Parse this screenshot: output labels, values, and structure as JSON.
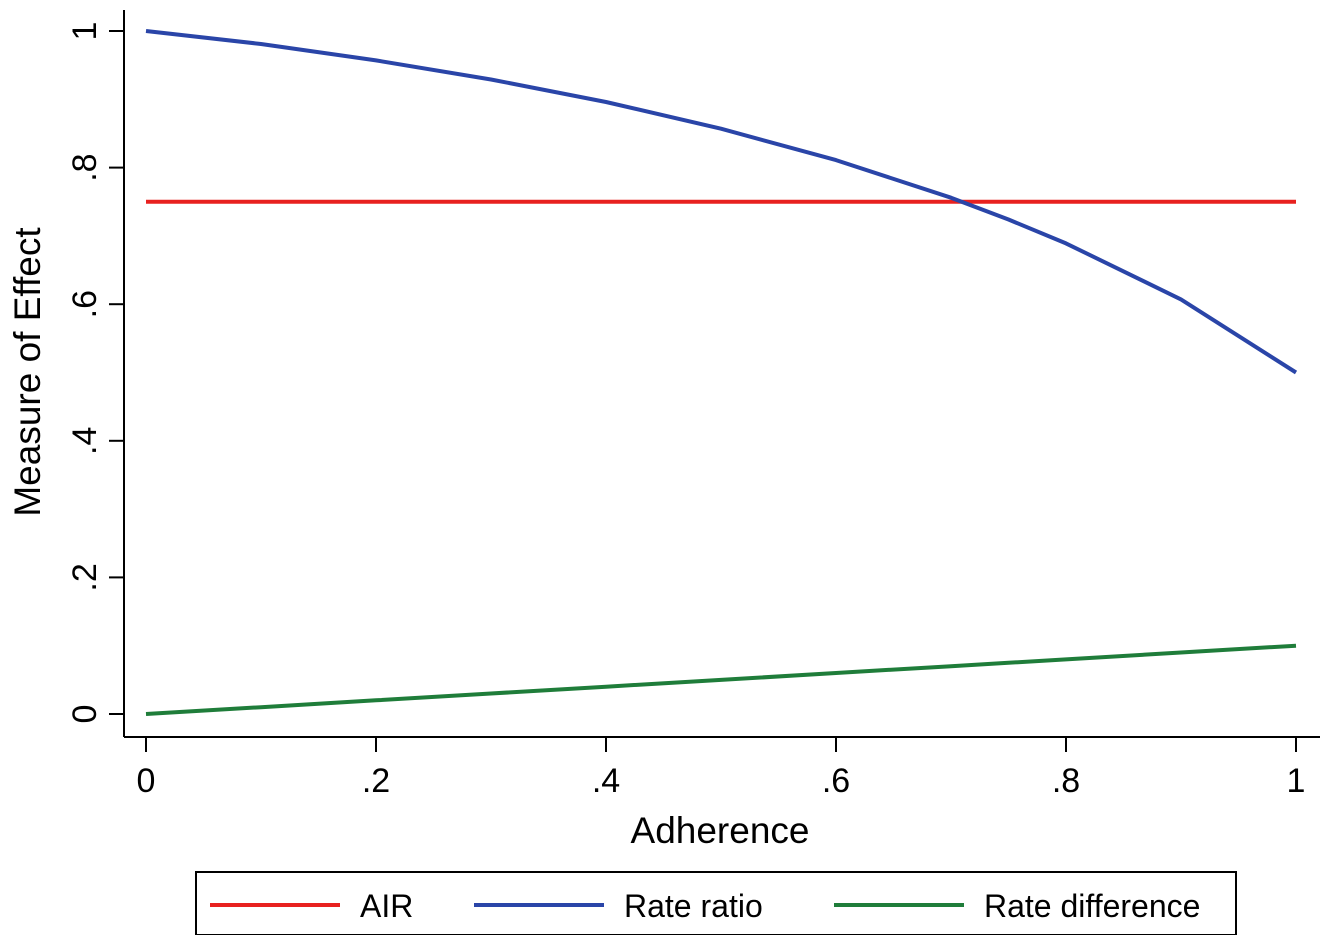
{
  "chart_data": {
    "type": "line",
    "title": "",
    "xlabel": "Adherence",
    "ylabel": "Measure of Effect",
    "xlim": [
      0,
      1
    ],
    "ylim": [
      0,
      1
    ],
    "x_ticks": [
      0,
      0.2,
      0.4,
      0.6,
      0.8,
      1
    ],
    "x_tick_labels": [
      "0",
      ".2",
      ".4",
      ".6",
      ".8",
      "1"
    ],
    "y_ticks": [
      0,
      0.2,
      0.4,
      0.6,
      0.8,
      1
    ],
    "y_tick_labels": [
      "0",
      ".2",
      ".4",
      ".6",
      ".8",
      "1"
    ],
    "grid": false,
    "legend_position": "bottom",
    "x": [
      0,
      0.1,
      0.2,
      0.3,
      0.4,
      0.5,
      0.6,
      0.7,
      0.75,
      0.8,
      0.9,
      1
    ],
    "series": [
      {
        "name": "AIR",
        "color": "#e8211f",
        "values": [
          0.75,
          0.75,
          0.75,
          0.75,
          0.75,
          0.75,
          0.75,
          0.75,
          0.75,
          0.75,
          0.75,
          0.75
        ]
      },
      {
        "name": "Rate ratio",
        "color": "#2a45a8",
        "values": [
          1.0,
          0.981,
          0.957,
          0.929,
          0.896,
          0.857,
          0.811,
          0.756,
          0.724,
          0.689,
          0.607,
          0.5
        ]
      },
      {
        "name": "Rate difference",
        "color": "#1f7d3a",
        "values": [
          0.0,
          0.01,
          0.02,
          0.03,
          0.04,
          0.05,
          0.06,
          0.07,
          0.075,
          0.08,
          0.09,
          0.1
        ]
      }
    ]
  }
}
